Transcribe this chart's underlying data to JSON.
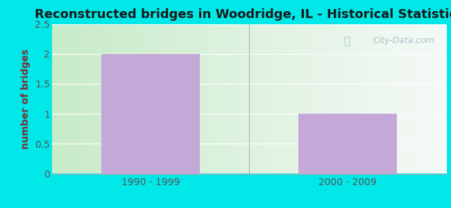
{
  "title": "Reconstructed bridges in Woodridge, IL - Historical Statistics",
  "categories": [
    "1990 - 1999",
    "2000 - 2009"
  ],
  "values": [
    2,
    1
  ],
  "bar_color": "#c4a8d8",
  "ylabel": "number of bridges",
  "ylim": [
    0,
    2.5
  ],
  "yticks": [
    0,
    0.5,
    1,
    1.5,
    2,
    2.5
  ],
  "title_fontsize": 13,
  "label_fontsize": 10,
  "tick_fontsize": 10,
  "axis_label_color": "#7a3030",
  "tick_label_color": "#555555",
  "title_color": "#1a1a1a",
  "background_outer": "#00e8e8",
  "background_plot": "#e8f5e0",
  "watermark_text": "City-Data.com",
  "watermark_color": "#aabfc8",
  "bar_width": 0.5
}
